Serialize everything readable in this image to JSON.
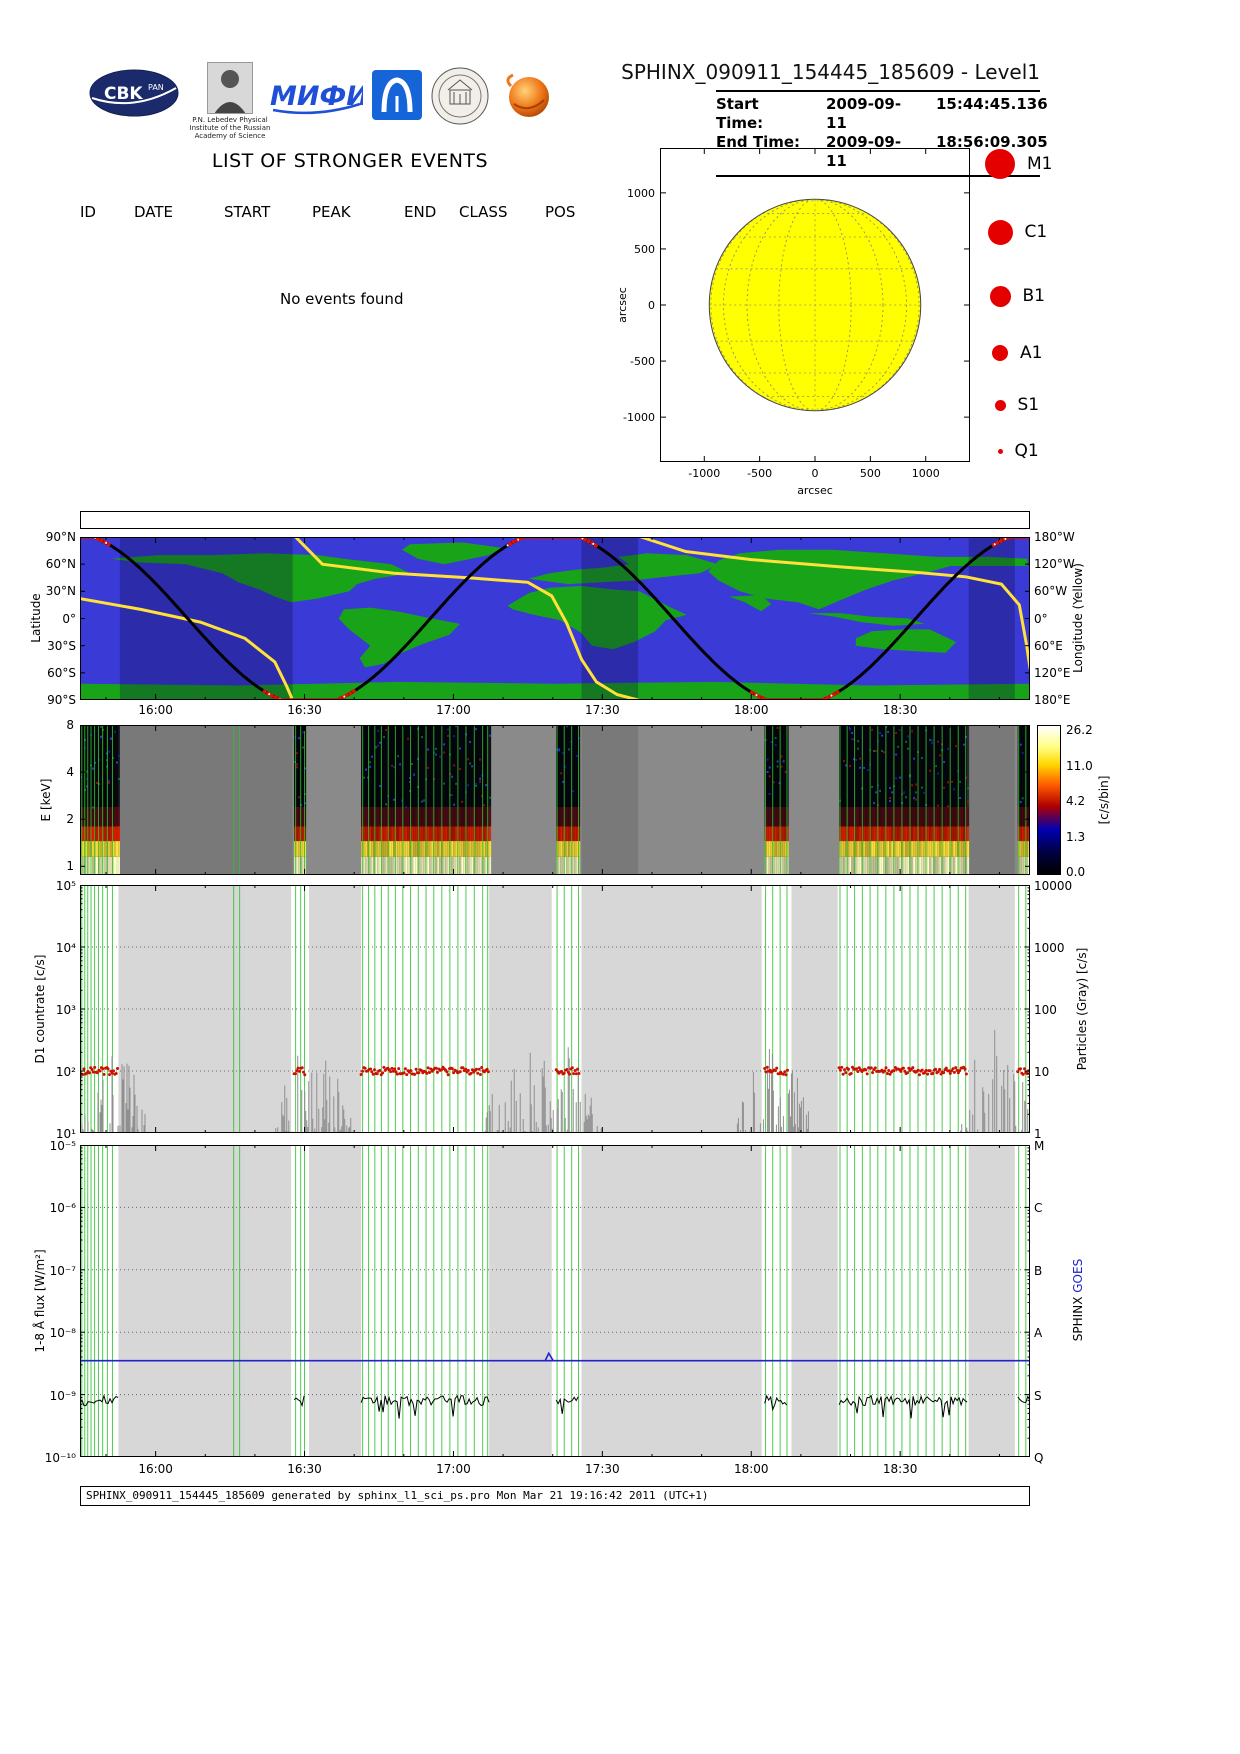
{
  "header": {
    "title": "SPHINX_090911_154445_185609 - Level1",
    "start_time_label": "Start Time:",
    "start_date": "2009-09-11",
    "start_clock": "15:44:45.136",
    "end_time_label": "End Time:",
    "end_date": "2009-09-11",
    "end_clock": "18:56:09.305",
    "logos": {
      "cbk": "CBK",
      "cbk_sub": "PAN",
      "lebedev_caption": "P.N. Lebedev Physical Institute of the Russian Academy of Science",
      "mephi": "МИФИ"
    }
  },
  "events": {
    "heading": "LIST OF STRONGER EVENTS",
    "columns": [
      "ID",
      "DATE",
      "START",
      "PEAK",
      "END",
      "CLASS",
      "POS"
    ],
    "empty_message": "No events found"
  },
  "sun_plot": {
    "legend_color": "#e50000",
    "legend": [
      {
        "label": "M1",
        "radius": 15
      },
      {
        "label": "C1",
        "radius": 12.5
      },
      {
        "label": "B1",
        "radius": 10.5
      },
      {
        "label": "A1",
        "radius": 8
      },
      {
        "label": "S1",
        "radius": 5.5
      },
      {
        "label": "Q1",
        "radius": 2.5
      }
    ]
  },
  "footer": {
    "text": "SPHINX_090911_154445_185609 generated by sphinx_l1_sci_ps.pro Mon Mar 21 19:16:42 2011 (UTC+1)"
  },
  "timeline": {
    "t_start_hours": 15.746,
    "t_end_hours": 18.936,
    "time_ticks": [
      {
        "h": 16.0,
        "label": "16:00"
      },
      {
        "h": 16.5,
        "label": "16:30"
      },
      {
        "h": 17.0,
        "label": "17:00"
      },
      {
        "h": 17.5,
        "label": "17:30"
      },
      {
        "h": 18.0,
        "label": "18:00"
      },
      {
        "h": 18.5,
        "label": "18:30"
      }
    ],
    "sunlit_data_segments": [
      [
        15.746,
        15.875
      ],
      [
        16.465,
        16.505
      ],
      [
        16.69,
        17.12
      ],
      [
        17.345,
        17.425
      ],
      [
        18.045,
        18.125
      ],
      [
        18.295,
        18.725
      ],
      [
        18.895,
        18.936
      ]
    ],
    "white_bands": [
      [
        15.746,
        15.875
      ],
      [
        16.455,
        16.515
      ],
      [
        16.69,
        17.12
      ],
      [
        17.33,
        17.43
      ],
      [
        18.035,
        18.135
      ],
      [
        18.29,
        18.73
      ],
      [
        18.885,
        18.936
      ]
    ],
    "green_line_times": [
      15.752,
      15.762,
      15.772,
      15.783,
      15.795,
      15.808,
      15.822,
      15.838,
      15.855,
      16.262,
      16.282,
      16.47,
      16.487,
      16.5,
      16.695,
      16.715,
      16.736,
      16.758,
      16.781,
      16.805,
      16.83,
      16.856,
      16.882,
      16.908,
      16.934,
      16.961,
      16.988,
      17.015,
      17.042,
      17.07,
      17.098,
      17.115,
      17.348,
      17.372,
      17.397,
      17.42,
      18.048,
      18.072,
      18.097,
      18.12,
      18.298,
      18.322,
      18.347,
      18.373,
      18.399,
      18.425,
      18.452,
      18.479,
      18.506,
      18.533,
      18.56,
      18.587,
      18.614,
      18.641,
      18.668,
      18.695,
      18.72,
      18.898,
      18.922
    ],
    "colors": {
      "band_gray": "#d7d7d7",
      "green_line": "#2ec22e"
    }
  },
  "chart_data": [
    {
      "id": "solar_disk",
      "type": "scatter",
      "title": "",
      "xlabel": "arcsec",
      "ylabel": "arcsec",
      "xlim": [
        -1400,
        1400
      ],
      "ylim": [
        -1400,
        1400
      ],
      "xticks": [
        -1000,
        -500,
        0,
        500,
        1000
      ],
      "yticks": [
        1000,
        500,
        0,
        -500,
        -1000
      ],
      "disk_radius": 955,
      "disk_color": "#ffff00",
      "grid_step_deg": 20,
      "flare_points": []
    },
    {
      "id": "ground_track",
      "type": "line",
      "ylabel": "Latitude",
      "right_label": "Longitude (Yellow)",
      "lat_ticks": [
        {
          "v": 90,
          "label": "90°N"
        },
        {
          "v": 60,
          "label": "60°N"
        },
        {
          "v": 30,
          "label": "30°N"
        },
        {
          "v": 0,
          "label": "0°"
        },
        {
          "v": -30,
          "label": "30°S"
        },
        {
          "v": -60,
          "label": "60°S"
        },
        {
          "v": -90,
          "label": "90°S"
        }
      ],
      "lon_ticks": [
        {
          "v": 90,
          "label": "180°W"
        },
        {
          "v": 60,
          "label": "120°W"
        },
        {
          "v": 30,
          "label": "60°W"
        },
        {
          "v": 0,
          "label": "0°"
        },
        {
          "v": -30,
          "label": "60°E"
        },
        {
          "v": -60,
          "label": "120°E"
        },
        {
          "v": -90,
          "label": "180°E"
        }
      ],
      "orbit": {
        "lat_amplitude": 96,
        "clip": 90,
        "top_time": 15.7,
        "half_period_h": 0.815
      },
      "eclipse_bands": [
        [
          15.88,
          16.46
        ],
        [
          17.43,
          17.62
        ],
        [
          18.73,
          18.885
        ]
      ],
      "ocean_color": "#3a3ad6",
      "land_color": "#19a319",
      "track_color": "#000000",
      "longitude_color": "#ffe13a",
      "longitude_segments": [
        [
          [
            15.746,
            22
          ],
          [
            15.95,
            10
          ],
          [
            16.15,
            -4
          ],
          [
            16.3,
            -22
          ],
          [
            16.4,
            -48
          ],
          [
            16.44,
            -75
          ],
          [
            16.46,
            -90
          ]
        ],
        [
          [
            16.47,
            90
          ],
          [
            16.56,
            60
          ],
          [
            16.8,
            50
          ],
          [
            17.05,
            45
          ],
          [
            17.25,
            40
          ],
          [
            17.33,
            25
          ],
          [
            17.38,
            -5
          ],
          [
            17.43,
            -45
          ],
          [
            17.48,
            -70
          ],
          [
            17.55,
            -84
          ],
          [
            17.62,
            -90
          ]
        ],
        [
          [
            17.63,
            90
          ],
          [
            17.78,
            74
          ],
          [
            18.0,
            65
          ],
          [
            18.3,
            57
          ],
          [
            18.55,
            51
          ],
          [
            18.72,
            46
          ],
          [
            18.84,
            38
          ],
          [
            18.9,
            15
          ],
          [
            18.925,
            -30
          ],
          [
            18.936,
            -55
          ]
        ]
      ],
      "continents": [
        [
          [
            -168,
            66
          ],
          [
            -150,
            70
          ],
          [
            -130,
            70
          ],
          [
            -110,
            72
          ],
          [
            -90,
            70
          ],
          [
            -80,
            66
          ],
          [
            -62,
            60
          ],
          [
            -55,
            50
          ],
          [
            -68,
            44
          ],
          [
            -75,
            38
          ],
          [
            -78,
            30
          ],
          [
            -90,
            22
          ],
          [
            -100,
            18
          ],
          [
            -106,
            24
          ],
          [
            -112,
            32
          ],
          [
            -120,
            40
          ],
          [
            -126,
            50
          ],
          [
            -140,
            60
          ],
          [
            -158,
            62
          ]
        ],
        [
          [
            -55,
            82
          ],
          [
            -35,
            84
          ],
          [
            -20,
            78
          ],
          [
            -25,
            70
          ],
          [
            -42,
            60
          ],
          [
            -52,
            66
          ],
          [
            -58,
            76
          ]
        ],
        [
          [
            -80,
            10
          ],
          [
            -70,
            12
          ],
          [
            -60,
            8
          ],
          [
            -50,
            2
          ],
          [
            -36,
            -6
          ],
          [
            -40,
            -18
          ],
          [
            -50,
            -28
          ],
          [
            -58,
            -38
          ],
          [
            -65,
            -50
          ],
          [
            -72,
            -54
          ],
          [
            -74,
            -44
          ],
          [
            -70,
            -30
          ],
          [
            -78,
            -12
          ],
          [
            -82,
            0
          ]
        ],
        [
          [
            -10,
            44
          ],
          [
            -2,
            50
          ],
          [
            8,
            54
          ],
          [
            18,
            56
          ],
          [
            28,
            60
          ],
          [
            24,
            68
          ],
          [
            35,
            72
          ],
          [
            50,
            70
          ],
          [
            62,
            60
          ],
          [
            55,
            50
          ],
          [
            42,
            46
          ],
          [
            30,
            42
          ],
          [
            18,
            40
          ],
          [
            5,
            38
          ]
        ],
        [
          [
            -18,
            14
          ],
          [
            -10,
            28
          ],
          [
            -2,
            34
          ],
          [
            10,
            36
          ],
          [
            22,
            32
          ],
          [
            32,
            30
          ],
          [
            44,
            12
          ],
          [
            50,
            4
          ],
          [
            42,
            -2
          ],
          [
            38,
            -14
          ],
          [
            30,
            -26
          ],
          [
            22,
            -34
          ],
          [
            14,
            -30
          ],
          [
            10,
            -16
          ],
          [
            2,
            -2
          ],
          [
            -8,
            4
          ],
          [
            -16,
            10
          ]
        ],
        [
          [
            62,
            42
          ],
          [
            58,
            52
          ],
          [
            62,
            64
          ],
          [
            70,
            72
          ],
          [
            85,
            76
          ],
          [
            105,
            76
          ],
          [
            125,
            72
          ],
          [
            145,
            68
          ],
          [
            165,
            68
          ],
          [
            179,
            66
          ],
          [
            179,
            58
          ],
          [
            165,
            58
          ],
          [
            150,
            58
          ],
          [
            140,
            50
          ],
          [
            128,
            42
          ],
          [
            118,
            32
          ],
          [
            108,
            20
          ],
          [
            100,
            10
          ],
          [
            92,
            18
          ],
          [
            80,
            22
          ],
          [
            70,
            30
          ]
        ],
        [
          [
            66,
            24
          ],
          [
            72,
            18
          ],
          [
            78,
            8
          ],
          [
            82,
            16
          ],
          [
            78,
            26
          ]
        ],
        [
          [
            96,
            6
          ],
          [
            106,
            2
          ],
          [
            116,
            -4
          ],
          [
            128,
            -8
          ],
          [
            140,
            -6
          ],
          [
            134,
            0
          ],
          [
            120,
            2
          ],
          [
            108,
            6
          ]
        ],
        [
          [
            114,
            -22
          ],
          [
            120,
            -14
          ],
          [
            132,
            -12
          ],
          [
            142,
            -12
          ],
          [
            152,
            -26
          ],
          [
            148,
            -38
          ],
          [
            136,
            -36
          ],
          [
            124,
            -34
          ],
          [
            114,
            -30
          ]
        ],
        [
          [
            -180,
            -72
          ],
          [
            -120,
            -74
          ],
          [
            -60,
            -70
          ],
          [
            0,
            -72
          ],
          [
            60,
            -70
          ],
          [
            120,
            -74
          ],
          [
            180,
            -72
          ],
          [
            180,
            -90
          ],
          [
            -180,
            -90
          ]
        ]
      ]
    },
    {
      "id": "spectrogram",
      "type": "heatmap",
      "ylabel": "E [keV]",
      "yticks": [
        1,
        2,
        4,
        8
      ],
      "y_range_kev": [
        0.88,
        8
      ],
      "colorbar_ticks": [
        26.2,
        11.0,
        4.2,
        1.3,
        0.0
      ],
      "colorbar_label": "[c/s/bin]",
      "bg_gray": "#8a8a8a",
      "band_profile": [
        {
          "e0": 0.88,
          "e1": 1.15,
          "color": "#ffffc8"
        },
        {
          "e0": 1.15,
          "e1": 1.45,
          "color": "#ffe23c"
        },
        {
          "e0": 1.45,
          "e1": 1.8,
          "color": "#d81e00"
        },
        {
          "e0": 1.8,
          "e1": 2.4,
          "color": "#4c0a14"
        },
        {
          "e0": 2.4,
          "e1": 8.0,
          "color": "#06060f"
        }
      ]
    },
    {
      "id": "countrate",
      "type": "line",
      "ylabel": "D1 countrate [c/s]",
      "right_label": "Particles (Gray) [c/s]",
      "yticks_left": [
        "10⁵",
        "10⁴",
        "10³",
        "10²",
        "10¹"
      ],
      "yticks_right": [
        "10000",
        "1000",
        "100",
        "10",
        "1"
      ],
      "ylog_range": [
        1,
        5
      ],
      "quiet_sun_level_cs": 100,
      "dot_color": "#cc1100",
      "particle_color": "#8f8f8f",
      "particle_regions": [
        {
          "t0": 15.746,
          "t1": 15.97,
          "peak": 250
        },
        {
          "t0": 16.4,
          "t1": 16.66,
          "peak": 300
        },
        {
          "t0": 17.1,
          "t1": 17.5,
          "peak": 400
        },
        {
          "t0": 17.93,
          "t1": 18.2,
          "peak": 300
        },
        {
          "t0": 18.7,
          "t1": 18.936,
          "peak": 700
        }
      ]
    },
    {
      "id": "flux",
      "type": "line",
      "ylabel": "1-8 Å flux [W/m²]",
      "yticks": [
        "10⁻⁵",
        "10⁻⁶",
        "10⁻⁷",
        "10⁻⁸",
        "10⁻⁹",
        "10⁻¹⁰"
      ],
      "ylog_range": [
        -10,
        -5
      ],
      "goes_class_letters": [
        "M",
        "C",
        "B",
        "A",
        "S",
        "Q"
      ],
      "goes_level_wm2": 3.5e-09,
      "goes_bump": {
        "t": 17.32,
        "level_wm2": 4.6e-09
      },
      "sphinx_level_wm2": 8e-10,
      "goes_color": "#2222cc",
      "sphinx_color": "#000000",
      "right_label_sphinx": "SPHINX",
      "right_label_goes": "GOES"
    }
  ]
}
